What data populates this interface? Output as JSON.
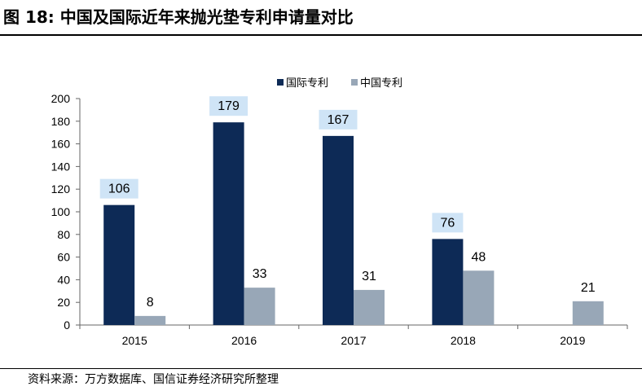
{
  "header": {
    "title": "图 18:  中国及国际近年来抛光垫专利申请量对比"
  },
  "footer": {
    "source": "资料来源：万方数据库、国信证券经济研究所整理"
  },
  "chart_data": {
    "type": "bar",
    "title": "",
    "categories": [
      "2015",
      "2016",
      "2017",
      "2018",
      "2019"
    ],
    "series": [
      {
        "name": "国际专利",
        "values": [
          106,
          179,
          167,
          76,
          null
        ],
        "color": "#0d2a56"
      },
      {
        "name": "中国专利",
        "values": [
          8,
          33,
          31,
          48,
          21
        ],
        "color": "#98a7b7"
      }
    ],
    "yticks": [
      0,
      20,
      40,
      60,
      80,
      100,
      120,
      140,
      160,
      180,
      200
    ],
    "ylim": [
      0,
      200
    ],
    "xlabel": "",
    "ylabel": "",
    "grid": false,
    "legend_position": "top-center",
    "label_box_color": "#cfe4f6"
  }
}
